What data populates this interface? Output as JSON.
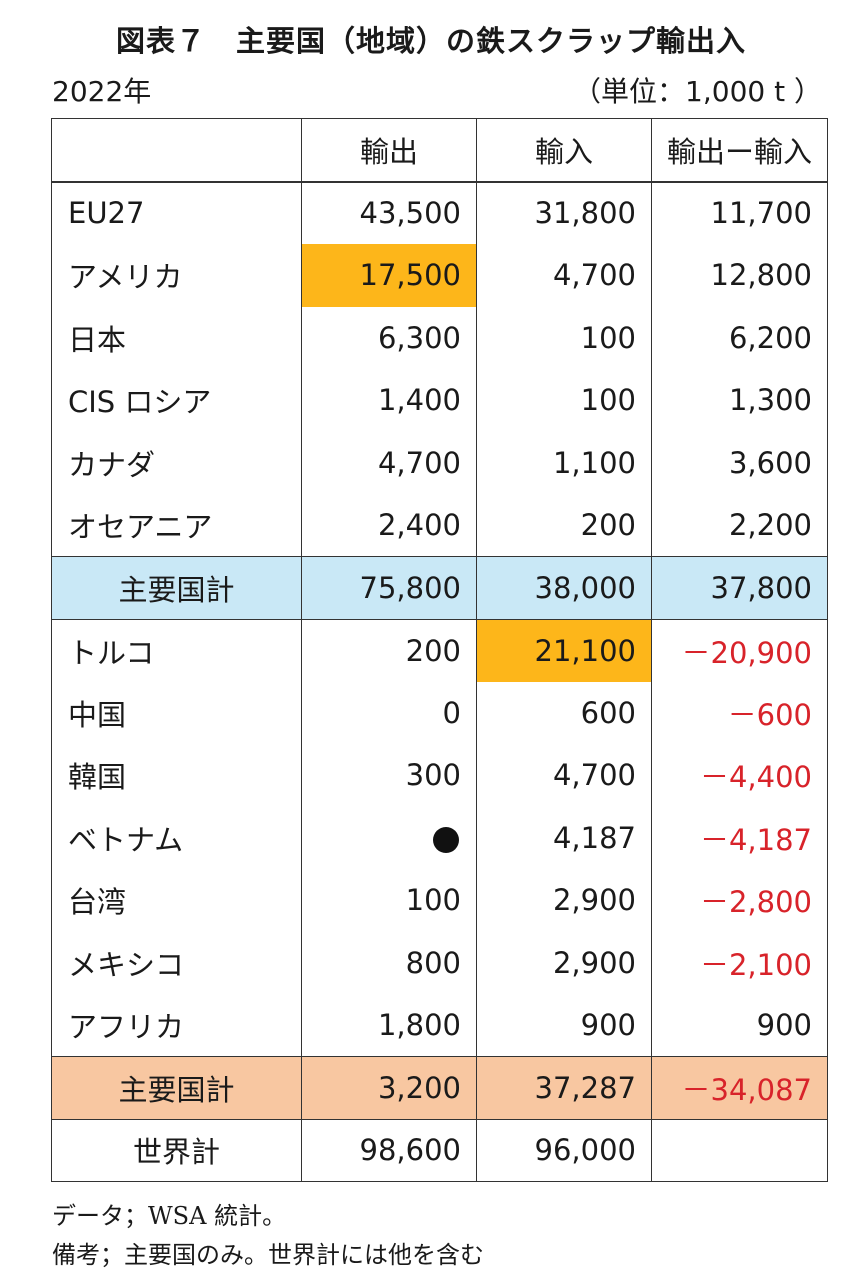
{
  "title": "図表７　主要国（地域）の鉄スクラップ輸出入",
  "year": "2022年",
  "unit": "（単位：1,000 t ）",
  "headers": [
    "",
    "輸出",
    "輸入",
    "輸出ー輸入"
  ],
  "group1": [
    {
      "name": "EU27",
      "export": "43,500",
      "import": "31,800",
      "diff": "11,700"
    },
    {
      "name": "アメリカ",
      "export": "17,500",
      "import": "4,700",
      "diff": "12,800"
    },
    {
      "name": "日本",
      "export": "6,300",
      "import": "100",
      "diff": "6,200"
    },
    {
      "name": "CIS ロシア",
      "export": "1,400",
      "import": "100",
      "diff": "1,300"
    },
    {
      "name": "カナダ",
      "export": "4,700",
      "import": "1,100",
      "diff": "3,600"
    },
    {
      "name": "オセアニア",
      "export": "2,400",
      "import": "200",
      "diff": "2,200"
    }
  ],
  "subtotal1": {
    "name": "主要国計",
    "export": "75,800",
    "import": "38,000",
    "diff": "37,800"
  },
  "group2": [
    {
      "name": "トルコ",
      "export": "200",
      "import": "21,100",
      "diff": "－20,900"
    },
    {
      "name": "中国",
      "export": "0",
      "import": "600",
      "diff": "－600"
    },
    {
      "name": "韓国",
      "export": "300",
      "import": "4,700",
      "diff": "－4,400"
    },
    {
      "name": "ベトナム",
      "export": "",
      "import": "4,187",
      "diff": "－4,187"
    },
    {
      "name": "台湾",
      "export": "100",
      "import": "2,900",
      "diff": "－2,800"
    },
    {
      "name": "メキシコ",
      "export": "800",
      "import": "2,900",
      "diff": "－2,100"
    },
    {
      "name": "アフリカ",
      "export": "1,800",
      "import": "900",
      "diff": "900"
    }
  ],
  "subtotal2": {
    "name": "主要国計",
    "export": "3,200",
    "import": "37,287",
    "diff": "－34,087"
  },
  "world": {
    "name": "世界計",
    "export": "98,600",
    "import": "96,000",
    "diff": ""
  },
  "notes": {
    "data_source": "データ；WSA 統計。",
    "remark": "備考；主要国のみ。世界計には他を含む"
  },
  "colors": {
    "highlight": "#fdb61a",
    "subtotal1_bg": "#c9e8f6",
    "subtotal2_bg": "#f8c7a1",
    "negative": "#d8232a"
  },
  "icons": {
    "vietnam_export": "black-circle-icon"
  }
}
